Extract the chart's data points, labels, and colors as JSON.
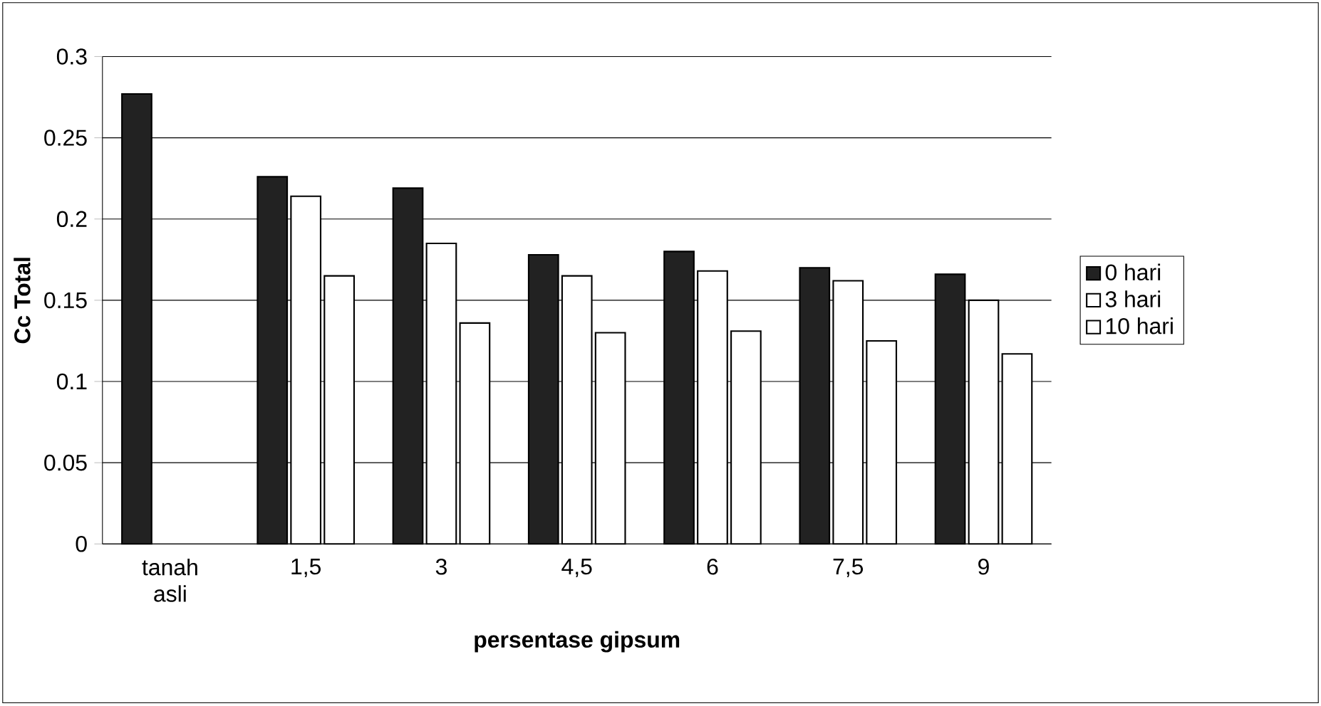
{
  "chart_data": {
    "type": "bar",
    "xlabel": "persentase gipsum",
    "ylabel": "Cc Total",
    "categories": [
      "tanah asli",
      "1,5",
      "3",
      "4,5",
      "6",
      "7,5",
      "9"
    ],
    "series": [
      {
        "name": "0 hari",
        "color": "#222222",
        "values": [
          0.277,
          0.226,
          0.219,
          0.178,
          0.18,
          0.17,
          0.166
        ]
      },
      {
        "name": "3 hari",
        "color": "#ffffff",
        "values": [
          null,
          0.214,
          0.185,
          0.165,
          0.168,
          0.162,
          0.15
        ]
      },
      {
        "name": "10 hari",
        "color": "#ffffff",
        "values": [
          null,
          0.165,
          0.136,
          0.13,
          0.131,
          0.125,
          0.117
        ]
      }
    ],
    "ylim": [
      0,
      0.3
    ],
    "yticks": [
      0,
      0.05,
      0.1,
      0.15,
      0.2,
      0.25,
      0.3
    ],
    "grid": "y",
    "legend": "right"
  }
}
